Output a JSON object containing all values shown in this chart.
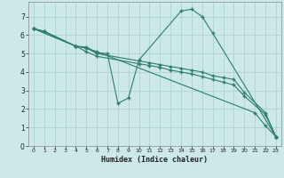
{
  "title": "",
  "xlabel": "Humidex (Indice chaleur)",
  "bg_color": "#cce8e8",
  "line_color": "#2e7d6e",
  "xlim": [
    -0.5,
    23.5
  ],
  "ylim": [
    0,
    7.8
  ],
  "xticks": [
    0,
    1,
    2,
    3,
    4,
    5,
    6,
    7,
    8,
    9,
    10,
    11,
    12,
    13,
    14,
    15,
    16,
    17,
    18,
    19,
    20,
    21,
    22,
    23
  ],
  "yticks": [
    0,
    1,
    2,
    3,
    4,
    5,
    6,
    7
  ],
  "line1_x": [
    0,
    1,
    4,
    5,
    6,
    7,
    8,
    9,
    10,
    14,
    15,
    16,
    17,
    23
  ],
  "line1_y": [
    6.35,
    6.2,
    5.4,
    5.35,
    5.05,
    5.0,
    2.3,
    2.6,
    4.65,
    7.3,
    7.4,
    7.0,
    6.1,
    0.5
  ],
  "line2_x": [
    0,
    1,
    4,
    5,
    6,
    21,
    22,
    23
  ],
  "line2_y": [
    6.35,
    6.2,
    5.4,
    5.3,
    5.1,
    1.8,
    1.1,
    0.5
  ],
  "line3_x": [
    0,
    4,
    5,
    6,
    10,
    11,
    12,
    13,
    14,
    15,
    16,
    17,
    18,
    19,
    20,
    22,
    23
  ],
  "line3_y": [
    6.35,
    5.4,
    5.3,
    5.0,
    4.6,
    4.5,
    4.4,
    4.3,
    4.2,
    4.1,
    4.0,
    3.8,
    3.7,
    3.6,
    2.9,
    1.8,
    0.5
  ],
  "line4_x": [
    0,
    4,
    5,
    6,
    10,
    11,
    12,
    13,
    14,
    15,
    16,
    17,
    18,
    19,
    20,
    22,
    23
  ],
  "line4_y": [
    6.35,
    5.4,
    5.1,
    4.85,
    4.45,
    4.35,
    4.25,
    4.1,
    4.0,
    3.9,
    3.75,
    3.6,
    3.45,
    3.3,
    2.7,
    1.7,
    0.5
  ],
  "lw": 0.8,
  "ms": 3.5
}
